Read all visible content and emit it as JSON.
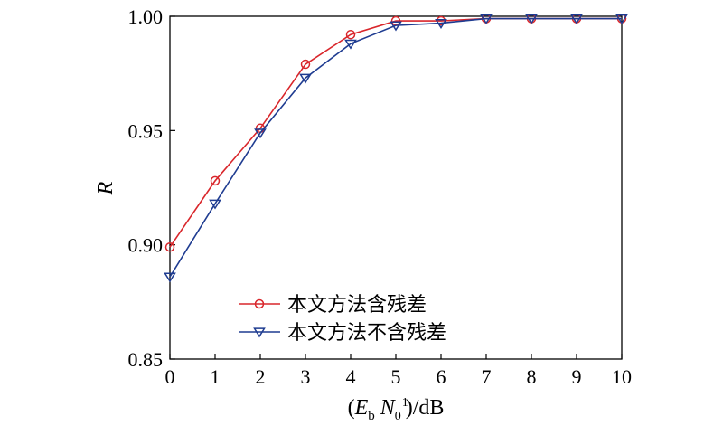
{
  "chart_data": {
    "type": "line",
    "title": "",
    "xlabel_parts": {
      "open": "(",
      "E": "E",
      "b": "b",
      "N": "N",
      "sup": "−1",
      "sub0": "0",
      "close": ")/dB"
    },
    "ylabel": "R",
    "x": [
      0,
      1,
      2,
      3,
      4,
      5,
      6,
      7,
      8,
      9,
      10
    ],
    "xlim": [
      0,
      10
    ],
    "ylim": [
      0.85,
      1.0
    ],
    "x_ticks": [
      "0",
      "1",
      "2",
      "3",
      "4",
      "5",
      "6",
      "7",
      "8",
      "9",
      "10"
    ],
    "y_ticks": [
      {
        "value": 0.85,
        "label": "0.85"
      },
      {
        "value": 0.9,
        "label": "0.90"
      },
      {
        "value": 0.95,
        "label": "0.95"
      },
      {
        "value": 1.0,
        "label": "1.00"
      }
    ],
    "grid": false,
    "legend_position": "bottom-right",
    "series": [
      {
        "name": "本文方法含残差",
        "color": "#d9262b",
        "marker": "circle",
        "values": [
          0.899,
          0.928,
          0.951,
          0.979,
          0.992,
          0.998,
          0.998,
          0.999,
          0.999,
          0.999,
          0.999
        ]
      },
      {
        "name": "本文方法不含残差",
        "color": "#1f3c91",
        "marker": "triangle-down",
        "values": [
          0.886,
          0.918,
          0.949,
          0.973,
          0.988,
          0.996,
          0.997,
          0.999,
          0.999,
          0.999,
          0.999
        ]
      }
    ]
  }
}
